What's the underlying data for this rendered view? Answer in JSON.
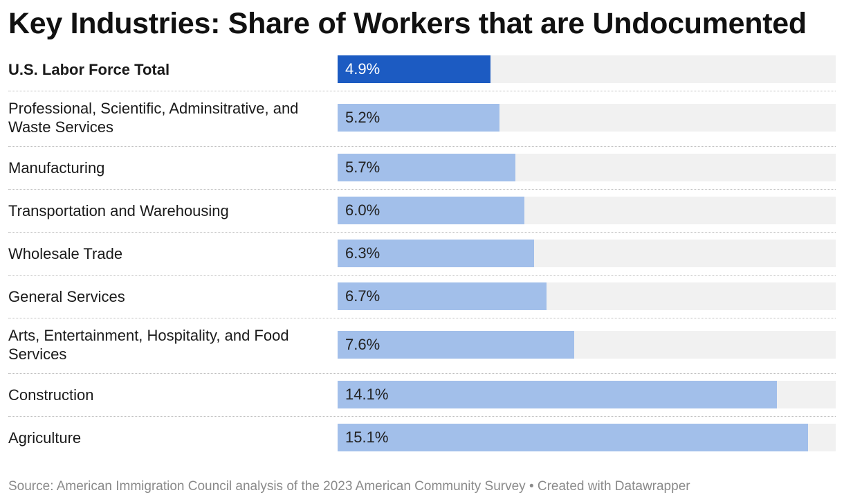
{
  "chart_data": {
    "type": "bar",
    "orientation": "horizontal",
    "title": "Key Industries: Share of Workers that are Undocumented",
    "categories": [
      "U.S. Labor Force Total",
      "Professional, Scientific, Adminsitrative, and Waste Services",
      "Manufacturing",
      "Transportation and Warehousing",
      "Wholesale Trade",
      "General Services",
      "Arts, Entertainment, Hospitality, and Food Services",
      "Construction",
      "Agriculture"
    ],
    "values": [
      4.9,
      5.2,
      5.7,
      6.0,
      6.3,
      6.7,
      7.6,
      14.1,
      15.1
    ],
    "value_labels": [
      "4.9%",
      "5.2%",
      "5.7%",
      "6.0%",
      "6.3%",
      "6.7%",
      "7.6%",
      "14.1%",
      "15.1%"
    ],
    "highlighted_category": "U.S. Labor Force Total",
    "xlim": [
      0,
      16
    ],
    "xlabel": "",
    "ylabel": "",
    "grid": false,
    "colors": {
      "highlight": "#1c5bc2",
      "bar": "#a2bfea",
      "track": "#f1f1f1"
    }
  },
  "footer": {
    "source": "Source: American Immigration Council analysis of the 2023 American Community Survey • Created with Datawrapper"
  }
}
